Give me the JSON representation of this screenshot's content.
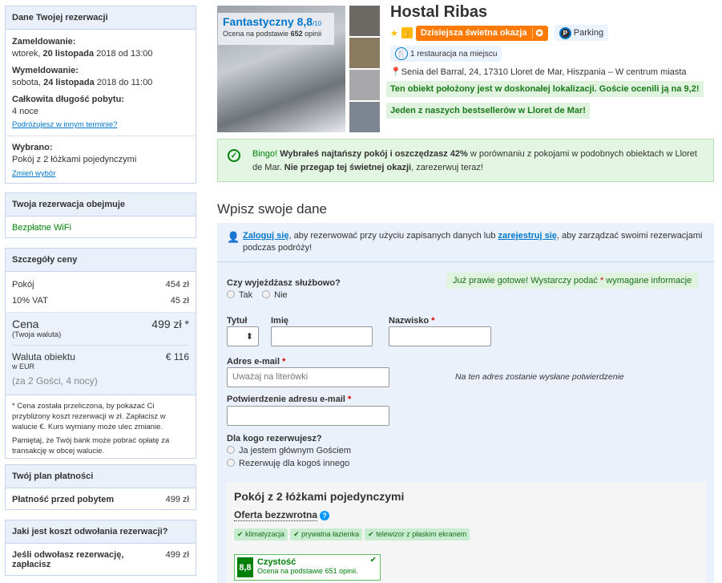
{
  "sidebar": {
    "booking": {
      "title": "Dane Twojej rezerwacji",
      "checkin_label": "Zameldowanie:",
      "checkin_prefix": "wtorek, ",
      "checkin_date": "20 listopada",
      "checkin_suffix": " 2018 od 13:00",
      "checkout_label": "Wymeldowanie:",
      "checkout_prefix": "sobota, ",
      "checkout_date": "24 listopada",
      "checkout_suffix": " 2018 do 11:00",
      "length_label": "Całkowita długość pobytu:",
      "length_value": "4 noce",
      "change_dates_link": "Podróżujesz w innym terminie?",
      "selected_label": "Wybrano:",
      "selected_value": "Pokój z 2 łóżkami pojedynczymi",
      "change_selection_link": "Zmień wybór"
    },
    "includes": {
      "title": "Twoja rezerwacja obejmuje",
      "item": "Bezpłatne WiFi"
    },
    "price": {
      "title": "Szczegóły ceny",
      "rows": [
        {
          "label": "Pokój",
          "value": "454 zł"
        },
        {
          "label": "10% VAT",
          "value": "45 zł"
        }
      ],
      "total_label": "Cena",
      "total_value": "499 zł *",
      "total_sub": "(Twoja waluta)",
      "prop_label": "Waluta obiektu",
      "prop_value": "€ 116",
      "prop_sub": "w EUR",
      "guests": "(za 2 Gości, 4 nocy)",
      "note1": "* Cena została przeliczona, by pokazać Ci przybliżony koszt rezerwacji w zł. Zapłacisz w walucie €. Kurs wymiany może ulec zmianie.",
      "note2": "Pamiętaj, że Twój bank może pobrać opłatę za transakcję w obcej walucie."
    },
    "payment": {
      "title": "Twój plan płatności",
      "label": "Płatność przed pobytem",
      "value": "499 zł"
    },
    "cancel": {
      "title": "Jaki jest koszt odwołania rezerwacji?",
      "label": "Jeśli odwołasz rezerwację, zapłacisz",
      "value": "499 zł"
    }
  },
  "hotel": {
    "rating_word": "Fantastyczny",
    "rating": "8,8",
    "rating_max": "/10",
    "reviews_prefix": "Ocena na podstawie ",
    "reviews_count": "652",
    "reviews_suffix": " opinii",
    "name": "Hostal Ribas",
    "deal": "Dzisiejsza świetna okazja",
    "parking": "Parking",
    "restaurant": "1 restauracja na miejscu",
    "address": "Senia del Barral, 24, 17310 Lloret de Mar, Hiszpania – W centrum miasta",
    "highlight1": "Ten obiekt położony jest w doskonałej lokalizacji. Goście ocenili ją na 9,2!",
    "highlight2": "Jeden z naszych bestsellerów w Lloret de Mar!"
  },
  "bingo": {
    "a": "Bingo! ",
    "b": "Wybrałeś najtańszy pokój i oszczędzasz 42%",
    "c": " w porównaniu z pokojami w podobnych obiektach w Lloret de Mar. ",
    "d": "Nie przegap tej świetnej okazji",
    "e": ", zarezerwuj teraz!"
  },
  "form": {
    "title": "Wpisz swoje dane",
    "login_link": "Zaloguj się",
    "login_mid": ", aby rezerwować przy użyciu zapisanych danych lub ",
    "register_link": "zarejestruj się",
    "login_end": ", aby zarządzać swoimi rezerwacjami podczas podróży!",
    "business_q": "Czy wyjeżdżasz służbowo?",
    "yes": "Tak",
    "no": "Nie",
    "almost": "Już prawie gotowe! Wystarczy podać ",
    "almost_end": " wymagane informacje",
    "title_label": "Tytuł",
    "first_label": "Imię",
    "last_label": "Nazwisko",
    "email_label": "Adres e-mail",
    "email_placeholder": "Uważaj na literówki",
    "email_note": "Na ten adres zostanie wysłane potwierdzenie",
    "confirm_label": "Potwierdzenie adresu e-mail",
    "for_whom": "Dla kogo rezerwujesz?",
    "opt1": "Ja jestem głównym Gościem",
    "opt2": "Rezerwuję dla kogoś innego"
  },
  "room": {
    "name": "Pokój z 2 łóżkami pojedynczymi",
    "offer": "Oferta bezzwrotna",
    "facilities": [
      "klimatyzacja",
      "prywatna łazienka",
      "telewizor z płaskim ekranem"
    ],
    "score": "8,8",
    "score_label": "Czystość",
    "score_sub": "Ocena na podstawie 651 opinii."
  },
  "colors": {
    "brand_blue": "#0077cc",
    "deal_orange": "#ff7a00",
    "green": "#008009"
  }
}
